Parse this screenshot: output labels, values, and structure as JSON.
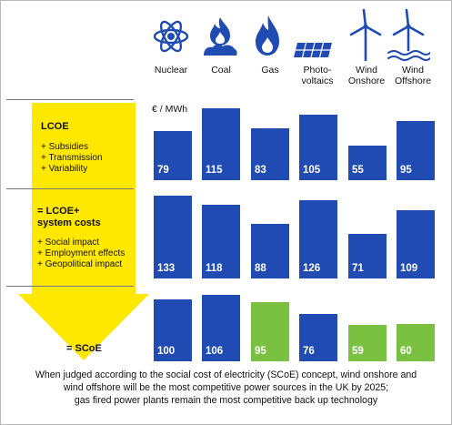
{
  "chart_data": {
    "type": "bar",
    "unit_label": "€ / MWh",
    "categories": [
      {
        "line1": "Nuclear",
        "line2": ""
      },
      {
        "line1": "Coal",
        "line2": ""
      },
      {
        "line1": "Gas",
        "line2": ""
      },
      {
        "line1": "Photo-",
        "line2": "voltaics"
      },
      {
        "line1": "Wind",
        "line2": "Onshore"
      },
      {
        "line1": "Wind",
        "line2": "Offshore"
      }
    ],
    "icons": [
      "atom-icon",
      "coal-fire-icon",
      "gas-flame-icon",
      "solar-panel-icon",
      "wind-turbine-icon",
      "offshore-wind-turbine-icon"
    ],
    "panels": [
      {
        "name": "LCOE",
        "values": [
          79,
          115,
          83,
          105,
          55,
          95
        ]
      },
      {
        "name": "LCOE+ system costs",
        "values": [
          133,
          118,
          88,
          126,
          71,
          109
        ]
      },
      {
        "name": "SCoE",
        "values": [
          100,
          106,
          95,
          76,
          59,
          60
        ],
        "highlight": [
          false,
          false,
          true,
          false,
          true,
          true
        ]
      }
    ],
    "colors": {
      "bar": "#1f4bb3",
      "highlight": "#7ac142",
      "arrow": "#ffe800",
      "icon": "#1f4bb3"
    }
  },
  "legend": {
    "block1_title": "LCOE",
    "block1_items": [
      "+ Subsidies",
      "+ Transmission",
      "+ Variability"
    ],
    "block2_title_line1": "= LCOE+",
    "block2_title_line2": "system costs",
    "block2_items": [
      "+ Social impact",
      "+ Employment effects",
      "+ Geopolitical impact"
    ],
    "block3_title": "= SCoE"
  },
  "caption": {
    "line1": "When judged according to the social cost of electricity (SCoE) concept, wind onshore and",
    "line2": "wind offshore will be the most competitive power sources in the UK by 2025;",
    "line3": "gas fired power plants remain the most competitive back up technology"
  }
}
